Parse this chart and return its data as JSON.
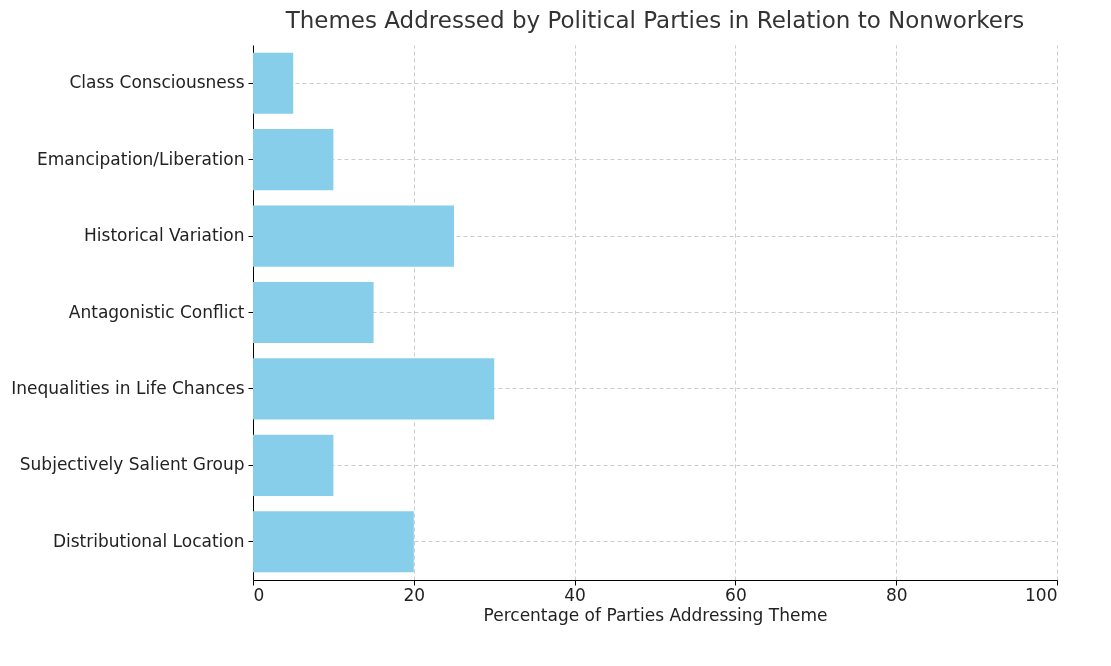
{
  "chart_data": {
    "type": "bar",
    "orientation": "horizontal",
    "title": "Themes Addressed by Political Parties in Relation to Nonworkers",
    "xlabel": "Percentage of Parties Addressing Theme",
    "categories": [
      "Class Consciousness",
      "Emancipation/Liberation",
      "Historical Variation",
      "Antagonistic Conflict",
      "Inequalities in Life Chances",
      "Subjectively Salient Group",
      "Distributional Location"
    ],
    "values": [
      5,
      10,
      25,
      15,
      30,
      10,
      20
    ],
    "color": "#87ceeb",
    "xlim": [
      0,
      100
    ],
    "xticks": [
      0,
      20,
      40,
      60,
      80,
      100
    ],
    "grid": true
  }
}
